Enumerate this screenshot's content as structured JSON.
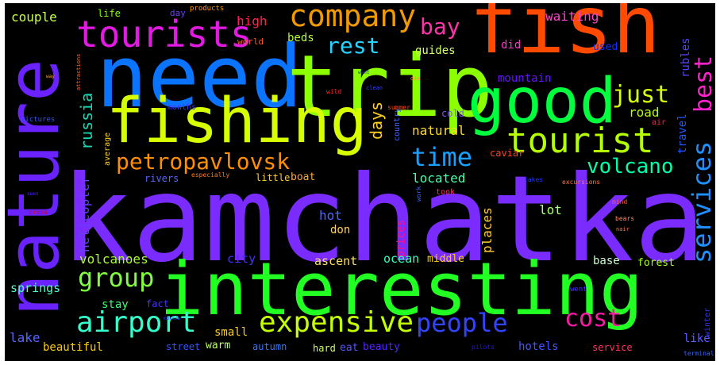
{
  "words": [
    {
      "text": "kamchatka",
      "color": "#7a2cff"
    },
    {
      "text": "interesting",
      "color": "#22ff22"
    },
    {
      "text": "need",
      "color": "#0a74ff"
    },
    {
      "text": "trip",
      "color": "#8cff00"
    },
    {
      "text": "fish",
      "color": "#ff4a00"
    },
    {
      "text": "nature",
      "color": "#6a22ff"
    },
    {
      "text": "fishing",
      "color": "#d7ff00"
    },
    {
      "text": "good",
      "color": "#00ff3c"
    },
    {
      "text": "tourists",
      "color": "#e41ae4"
    },
    {
      "text": "company",
      "color": "#f19a00"
    },
    {
      "text": "tourist",
      "color": "#b5ff00"
    },
    {
      "text": "petropavlovsk",
      "color": "#ff8f00"
    },
    {
      "text": "expensive",
      "color": "#c4ff00"
    },
    {
      "text": "airport",
      "color": "#33ffcc"
    },
    {
      "text": "people",
      "color": "#3344ff"
    },
    {
      "text": "services",
      "color": "#1e90ff"
    },
    {
      "text": "group",
      "color": "#7fff3c"
    },
    {
      "text": "cost",
      "color": "#ff1aa6"
    },
    {
      "text": "time",
      "color": "#1aa0ff"
    },
    {
      "text": "volcano",
      "color": "#00ffaa"
    },
    {
      "text": "best",
      "color": "#ff22cc"
    },
    {
      "text": "just",
      "color": "#d6ff00"
    },
    {
      "text": "rest",
      "color": "#25d3ff"
    },
    {
      "text": "bay",
      "color": "#ff33aa"
    },
    {
      "text": "russia",
      "color": "#12d9b3"
    },
    {
      "text": "days",
      "color": "#ffd11a"
    },
    {
      "text": "couple",
      "color": "#c9ff4a"
    },
    {
      "text": "waiting",
      "color": "#ff44cc"
    },
    {
      "text": "life",
      "color": "#8aff00"
    },
    {
      "text": "day",
      "color": "#6a3cff"
    },
    {
      "text": "products",
      "color": "#ff9900"
    },
    {
      "text": "world",
      "color": "#ff5a2a"
    },
    {
      "text": "high",
      "color": "#ff2255"
    },
    {
      "text": "beds",
      "color": "#b3ff33"
    },
    {
      "text": "guides",
      "color": "#d4ff66"
    },
    {
      "text": "did",
      "color": "#ff33cc"
    },
    {
      "text": "rubles",
      "color": "#5544ff"
    },
    {
      "text": "used",
      "color": "#1133ff"
    },
    {
      "text": "mountain",
      "color": "#6611ff"
    },
    {
      "text": "road",
      "color": "#b3ff00"
    },
    {
      "text": "travel",
      "color": "#2255ff"
    },
    {
      "text": "helicopter",
      "color": "#6a3cff"
    },
    {
      "text": "volcanoes",
      "color": "#a8ff33"
    },
    {
      "text": "located",
      "color": "#44ffaa"
    },
    {
      "text": "natural",
      "color": "#ffdd22"
    },
    {
      "text": "cold",
      "color": "#8855ff"
    },
    {
      "text": "caviar",
      "color": "#ff4422"
    },
    {
      "text": "air",
      "color": "#ff2255"
    },
    {
      "text": "lot",
      "color": "#a8ff77"
    },
    {
      "text": "places",
      "color": "#ffcc33"
    },
    {
      "text": "hot",
      "color": "#4d66ff"
    },
    {
      "text": "don",
      "color": "#ffd555"
    },
    {
      "text": "prices",
      "color": "#ff1188"
    },
    {
      "text": "city",
      "color": "#4433ff"
    },
    {
      "text": "ascent",
      "color": "#ffe066"
    },
    {
      "text": "ocean",
      "color": "#33ffbb"
    },
    {
      "text": "middle",
      "color": "#ffcc00"
    },
    {
      "text": "base",
      "color": "#c8ffcc"
    },
    {
      "text": "forest",
      "color": "#aaff22"
    },
    {
      "text": "like",
      "color": "#5f5fff"
    },
    {
      "text": "hotels",
      "color": "#4455ff"
    },
    {
      "text": "service",
      "color": "#ff3366"
    },
    {
      "text": "winter",
      "color": "#3333ff"
    },
    {
      "text": "springs",
      "color": "#4dffcc"
    },
    {
      "text": "stay",
      "color": "#33ff77"
    },
    {
      "text": "fact",
      "color": "#4433ff"
    },
    {
      "text": "lake",
      "color": "#5566ff"
    },
    {
      "text": "beautiful",
      "color": "#ffcc00"
    },
    {
      "text": "street",
      "color": "#3355ff"
    },
    {
      "text": "warm",
      "color": "#bbff66"
    },
    {
      "text": "small",
      "color": "#ffcc22"
    },
    {
      "text": "autumn",
      "color": "#3377ff"
    },
    {
      "text": "hard",
      "color": "#ccff66"
    },
    {
      "text": "eat",
      "color": "#5555ff"
    },
    {
      "text": "beauty",
      "color": "#5522ff"
    },
    {
      "text": "months",
      "color": "#4433ff"
    },
    {
      "text": "average",
      "color": "#ffcc22"
    },
    {
      "text": "country",
      "color": "#4466ff"
    },
    {
      "text": "took",
      "color": "#ff3366"
    },
    {
      "text": "summer",
      "color": "#ff4411"
    },
    {
      "text": "little",
      "color": "#ffcc22"
    },
    {
      "text": "boat",
      "color": "#ffaa33"
    },
    {
      "text": "rivers",
      "color": "#5566ff"
    },
    {
      "text": "especially",
      "color": "#ff7711"
    },
    {
      "text": "pictures",
      "color": "#3355ff"
    },
    {
      "text": "lakes",
      "color": "#2233ff"
    },
    {
      "text": "excursions",
      "color": "#ff7744"
    },
    {
      "text": "went",
      "color": "#5522ff"
    },
    {
      "text": "terminal",
      "color": "#3366ff"
    },
    {
      "text": "pilots",
      "color": "#2211ff"
    },
    {
      "text": "bears",
      "color": "#ff8866"
    },
    {
      "text": "work",
      "color": "#3366ff"
    },
    {
      "text": "wild",
      "color": "#ff2222"
    },
    {
      "text": "mind",
      "color": "#ff5533"
    },
    {
      "text": "nair",
      "color": "#ff7744"
    },
    {
      "text": "cross",
      "color": "#cc0022"
    },
    {
      "text": "die",
      "color": "#ff8844"
    },
    {
      "text": "way",
      "color": "#ffaa33"
    },
    {
      "text": "attractions",
      "color": "#ff6622"
    },
    {
      "text": "clean",
      "color": "#3344ff"
    },
    {
      "text": "want",
      "color": "#2222ff"
    },
    {
      "text": "moscow",
      "color": "#3333ff"
    },
    {
      "text": "seen",
      "color": "#4422ff"
    }
  ]
}
